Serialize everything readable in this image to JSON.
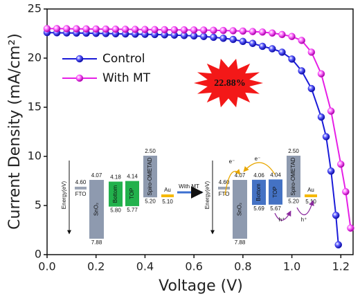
{
  "chart_data": {
    "type": "line",
    "xlabel": "Voltage (V)",
    "ylabel": "Current Density (mA/cm²)",
    "xlim": [
      0,
      1.25
    ],
    "ylim": [
      0,
      25
    ],
    "xticks": [
      {
        "value": 0,
        "label": "0.0"
      },
      {
        "value": 0.2,
        "label": "0.2"
      },
      {
        "value": 0.4,
        "label": "0.4"
      },
      {
        "value": 0.6,
        "label": "0.6"
      },
      {
        "value": 0.8,
        "label": "0.8"
      },
      {
        "value": 1.0,
        "label": "1.0"
      },
      {
        "value": 1.2,
        "label": "1.2"
      }
    ],
    "yticks": [
      0,
      5,
      10,
      15,
      20,
      25
    ],
    "legend": "upper left",
    "series": [
      {
        "name": "Control",
        "color": "#1a1ad8",
        "x": [
          0,
          0.04,
          0.08,
          0.12,
          0.16,
          0.2,
          0.24,
          0.28,
          0.32,
          0.36,
          0.4,
          0.44,
          0.48,
          0.52,
          0.56,
          0.6,
          0.64,
          0.68,
          0.72,
          0.76,
          0.8,
          0.84,
          0.88,
          0.92,
          0.96,
          1.0,
          1.04,
          1.08,
          1.12,
          1.14,
          1.16,
          1.18,
          1.19
        ],
        "values": [
          22.6,
          22.58,
          22.56,
          22.55,
          22.54,
          22.52,
          22.5,
          22.48,
          22.46,
          22.44,
          22.42,
          22.4,
          22.37,
          22.34,
          22.3,
          22.26,
          22.2,
          22.12,
          22.02,
          21.9,
          21.7,
          21.5,
          21.2,
          20.95,
          20.6,
          19.9,
          18.7,
          16.9,
          14.0,
          12.0,
          8.5,
          4.0,
          1.0
        ]
      },
      {
        "name": "With MT",
        "color": "#e61ee6",
        "x": [
          0,
          0.04,
          0.08,
          0.12,
          0.16,
          0.2,
          0.24,
          0.28,
          0.32,
          0.36,
          0.4,
          0.44,
          0.48,
          0.52,
          0.56,
          0.6,
          0.64,
          0.68,
          0.72,
          0.76,
          0.8,
          0.84,
          0.88,
          0.92,
          0.96,
          1.0,
          1.04,
          1.08,
          1.12,
          1.16,
          1.2,
          1.22,
          1.24
        ],
        "values": [
          23.0,
          23.0,
          22.99,
          22.98,
          22.97,
          22.96,
          22.95,
          22.94,
          22.93,
          22.92,
          22.91,
          22.9,
          22.89,
          22.88,
          22.87,
          22.86,
          22.85,
          22.83,
          22.81,
          22.78,
          22.75,
          22.7,
          22.65,
          22.55,
          22.4,
          22.2,
          21.8,
          20.6,
          18.4,
          14.6,
          9.2,
          6.4,
          2.7
        ]
      }
    ],
    "annotation": "22.88%"
  },
  "insets": [
    {
      "axis_label": "Energy(eV)",
      "color": "#22b14c",
      "layers": [
        {
          "name": "FTO",
          "top": "4.60"
        },
        {
          "name": "SnO₂",
          "top": "4.07",
          "bottom": "7.88"
        },
        {
          "name": "Bottom",
          "top": "4.18",
          "bottom": "5.80"
        },
        {
          "name": "TOP",
          "top": "4.14",
          "bottom": "5.77"
        },
        {
          "name": "Spiro-OMETAD",
          "top": "2.50",
          "bottom": "5.20"
        },
        {
          "name": "Au",
          "top": "5.10"
        }
      ]
    },
    {
      "axis_label": "Energy(eV)",
      "color": "#4472c4",
      "layers": [
        {
          "name": "FTO",
          "top": "4.60"
        },
        {
          "name": "SnO₂",
          "top": "4.07",
          "bottom": "7.88"
        },
        {
          "name": "Bottom",
          "top": "4.06",
          "bottom": "5.69"
        },
        {
          "name": "TOP",
          "top": "4.04",
          "bottom": "5.67"
        },
        {
          "name": "Spiro-OMETAD",
          "top": "2.50",
          "bottom": "5.20"
        },
        {
          "name": "Au",
          "top": "5.10"
        }
      ],
      "carriers": [
        "e⁻",
        "e⁻",
        "h⁺",
        "h⁺"
      ]
    }
  ],
  "arrow_label": "With MT"
}
